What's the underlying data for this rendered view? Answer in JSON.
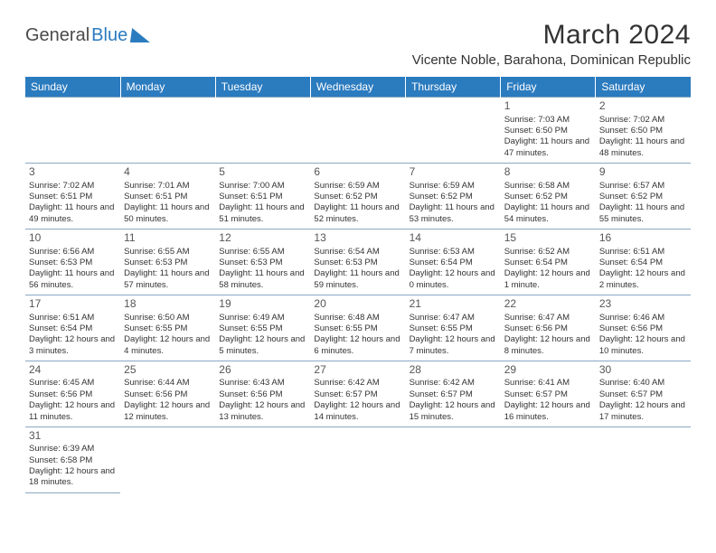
{
  "logo": {
    "part1": "General",
    "part2": "Blue"
  },
  "header": {
    "month_title": "March 2024",
    "location": "Vicente Noble, Barahona, Dominican Republic"
  },
  "styling": {
    "header_bg": "#2b7bbf",
    "header_fg": "#ffffff",
    "grid_border": "#8aa7c2",
    "text_color": "#333333",
    "logo_gray": "#4a4a4a",
    "logo_blue": "#2b7bbf",
    "day_font_size": 9.5,
    "header_font_size": 12,
    "title_font_size": 30
  },
  "day_names": [
    "Sunday",
    "Monday",
    "Tuesday",
    "Wednesday",
    "Thursday",
    "Friday",
    "Saturday"
  ],
  "weeks": [
    [
      null,
      null,
      null,
      null,
      null,
      {
        "d": "1",
        "sr": "7:03 AM",
        "ss": "6:50 PM",
        "dl": "11 hours and 47 minutes."
      },
      {
        "d": "2",
        "sr": "7:02 AM",
        "ss": "6:50 PM",
        "dl": "11 hours and 48 minutes."
      }
    ],
    [
      {
        "d": "3",
        "sr": "7:02 AM",
        "ss": "6:51 PM",
        "dl": "11 hours and 49 minutes."
      },
      {
        "d": "4",
        "sr": "7:01 AM",
        "ss": "6:51 PM",
        "dl": "11 hours and 50 minutes."
      },
      {
        "d": "5",
        "sr": "7:00 AM",
        "ss": "6:51 PM",
        "dl": "11 hours and 51 minutes."
      },
      {
        "d": "6",
        "sr": "6:59 AM",
        "ss": "6:52 PM",
        "dl": "11 hours and 52 minutes."
      },
      {
        "d": "7",
        "sr": "6:59 AM",
        "ss": "6:52 PM",
        "dl": "11 hours and 53 minutes."
      },
      {
        "d": "8",
        "sr": "6:58 AM",
        "ss": "6:52 PM",
        "dl": "11 hours and 54 minutes."
      },
      {
        "d": "9",
        "sr": "6:57 AM",
        "ss": "6:52 PM",
        "dl": "11 hours and 55 minutes."
      }
    ],
    [
      {
        "d": "10",
        "sr": "6:56 AM",
        "ss": "6:53 PM",
        "dl": "11 hours and 56 minutes."
      },
      {
        "d": "11",
        "sr": "6:55 AM",
        "ss": "6:53 PM",
        "dl": "11 hours and 57 minutes."
      },
      {
        "d": "12",
        "sr": "6:55 AM",
        "ss": "6:53 PM",
        "dl": "11 hours and 58 minutes."
      },
      {
        "d": "13",
        "sr": "6:54 AM",
        "ss": "6:53 PM",
        "dl": "11 hours and 59 minutes."
      },
      {
        "d": "14",
        "sr": "6:53 AM",
        "ss": "6:54 PM",
        "dl": "12 hours and 0 minutes."
      },
      {
        "d": "15",
        "sr": "6:52 AM",
        "ss": "6:54 PM",
        "dl": "12 hours and 1 minute."
      },
      {
        "d": "16",
        "sr": "6:51 AM",
        "ss": "6:54 PM",
        "dl": "12 hours and 2 minutes."
      }
    ],
    [
      {
        "d": "17",
        "sr": "6:51 AM",
        "ss": "6:54 PM",
        "dl": "12 hours and 3 minutes."
      },
      {
        "d": "18",
        "sr": "6:50 AM",
        "ss": "6:55 PM",
        "dl": "12 hours and 4 minutes."
      },
      {
        "d": "19",
        "sr": "6:49 AM",
        "ss": "6:55 PM",
        "dl": "12 hours and 5 minutes."
      },
      {
        "d": "20",
        "sr": "6:48 AM",
        "ss": "6:55 PM",
        "dl": "12 hours and 6 minutes."
      },
      {
        "d": "21",
        "sr": "6:47 AM",
        "ss": "6:55 PM",
        "dl": "12 hours and 7 minutes."
      },
      {
        "d": "22",
        "sr": "6:47 AM",
        "ss": "6:56 PM",
        "dl": "12 hours and 8 minutes."
      },
      {
        "d": "23",
        "sr": "6:46 AM",
        "ss": "6:56 PM",
        "dl": "12 hours and 10 minutes."
      }
    ],
    [
      {
        "d": "24",
        "sr": "6:45 AM",
        "ss": "6:56 PM",
        "dl": "12 hours and 11 minutes."
      },
      {
        "d": "25",
        "sr": "6:44 AM",
        "ss": "6:56 PM",
        "dl": "12 hours and 12 minutes."
      },
      {
        "d": "26",
        "sr": "6:43 AM",
        "ss": "6:56 PM",
        "dl": "12 hours and 13 minutes."
      },
      {
        "d": "27",
        "sr": "6:42 AM",
        "ss": "6:57 PM",
        "dl": "12 hours and 14 minutes."
      },
      {
        "d": "28",
        "sr": "6:42 AM",
        "ss": "6:57 PM",
        "dl": "12 hours and 15 minutes."
      },
      {
        "d": "29",
        "sr": "6:41 AM",
        "ss": "6:57 PM",
        "dl": "12 hours and 16 minutes."
      },
      {
        "d": "30",
        "sr": "6:40 AM",
        "ss": "6:57 PM",
        "dl": "12 hours and 17 minutes."
      }
    ],
    [
      {
        "d": "31",
        "sr": "6:39 AM",
        "ss": "6:58 PM",
        "dl": "12 hours and 18 minutes."
      },
      null,
      null,
      null,
      null,
      null,
      null
    ]
  ],
  "labels": {
    "sunrise": "Sunrise:",
    "sunset": "Sunset:",
    "daylight": "Daylight:"
  }
}
